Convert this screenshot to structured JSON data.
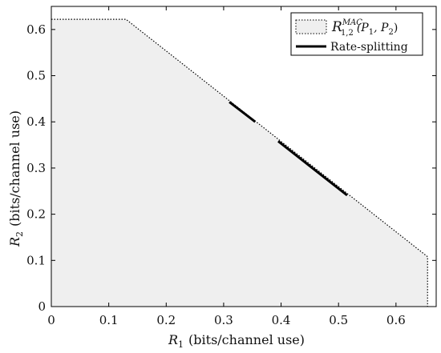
{
  "chart_data": {
    "type": "area",
    "xlabel_var": "R",
    "xlabel_sub": "1",
    "xlabel_unit": "(bits/channel use)",
    "ylabel_var": "R",
    "ylabel_sub": "2",
    "ylabel_unit": "(bits/channel use)",
    "xlim": [
      0,
      0.67
    ],
    "ylim": [
      0,
      0.65
    ],
    "xticks": [
      0,
      0.1,
      0.2,
      0.3,
      0.4,
      0.5,
      0.6
    ],
    "xtick_labels": [
      "0",
      "0.1",
      "0.2",
      "0.3",
      "0.4",
      "0.5",
      "0.6"
    ],
    "yticks": [
      0,
      0.1,
      0.2,
      0.3,
      0.4,
      0.5,
      0.6
    ],
    "ytick_labels": [
      "0",
      "0.1",
      "0.2",
      "0.3",
      "0.4",
      "0.5",
      "0.6"
    ],
    "grid": false,
    "legend_position": "top-right",
    "region": {
      "legend_label": "R^{MAC}_{1,2}(P_1,P_2)",
      "legend_main": "R",
      "legend_sup": "MAC",
      "legend_sub": "1,2",
      "legend_args": "(P",
      "legend_args_sub1": "1",
      "legend_args_mid": ", P",
      "legend_args_sub2": "2",
      "legend_args_end": ")",
      "fill_color": "#efefef",
      "vertices": [
        [
          0,
          0
        ],
        [
          0,
          0.622
        ],
        [
          0.13,
          0.622
        ],
        [
          0.655,
          0.108
        ],
        [
          0.655,
          0
        ]
      ]
    },
    "rate_splitting": {
      "legend_label": "Rate-splitting",
      "color": "#000000",
      "segments": [
        [
          [
            0.31,
            0.443
          ],
          [
            0.355,
            0.4
          ]
        ],
        [
          [
            0.395,
            0.358
          ],
          [
            0.515,
            0.241
          ]
        ]
      ]
    }
  }
}
